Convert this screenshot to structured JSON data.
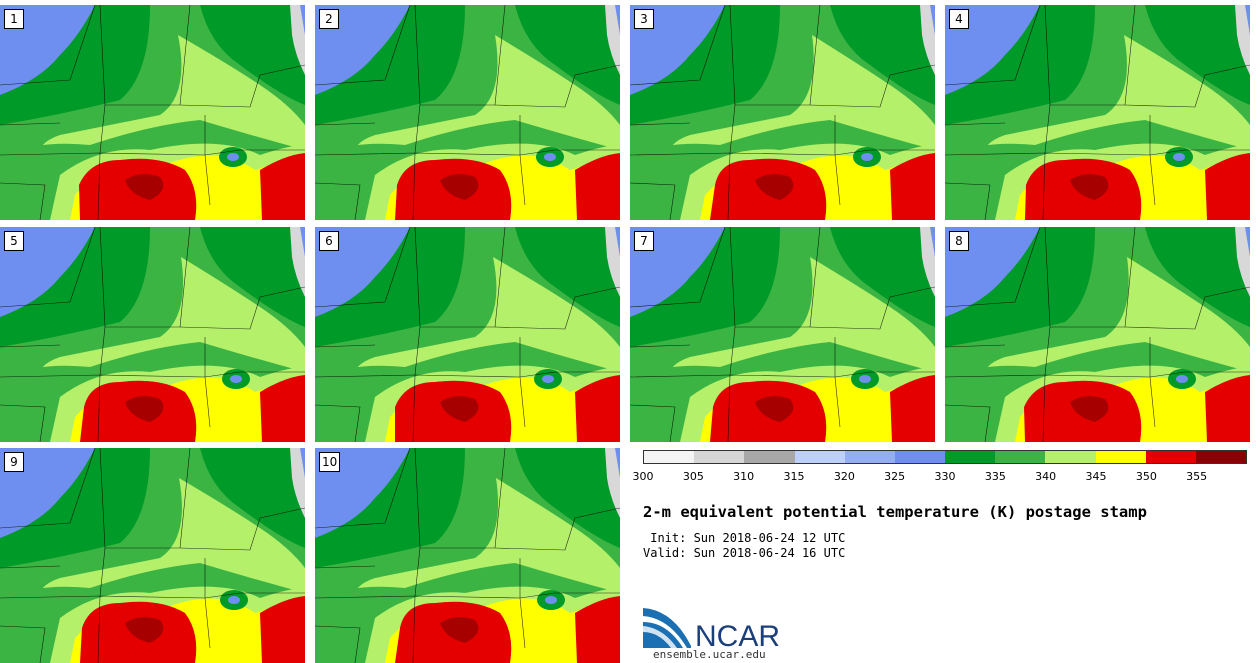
{
  "panels": [
    {
      "label": "1"
    },
    {
      "label": "2"
    },
    {
      "label": "3"
    },
    {
      "label": "4"
    },
    {
      "label": "5"
    },
    {
      "label": "6"
    },
    {
      "label": "7"
    },
    {
      "label": "8"
    },
    {
      "label": "9"
    },
    {
      "label": "10"
    }
  ],
  "legend": {
    "ticks": [
      "300",
      "305",
      "310",
      "315",
      "320",
      "325",
      "330",
      "335",
      "340",
      "345",
      "350",
      "355"
    ],
    "colors": [
      "#f4f4f4",
      "#d6d6d6",
      "#a8a8a8",
      "#bcd0fa",
      "#94aef4",
      "#6f8ff0",
      "#009a28",
      "#3bb443",
      "#b4f06a",
      "#ffff00",
      "#e50000",
      "#8b0000"
    ]
  },
  "title": "2-m equivalent potential temperature (K) postage stamp",
  "init_line": " Init: Sun 2018-06-24 12 UTC",
  "valid_line": "Valid: Sun 2018-06-24 16 UTC",
  "logo": {
    "text": "NCAR",
    "url": "ensemble.ucar.edu"
  }
}
